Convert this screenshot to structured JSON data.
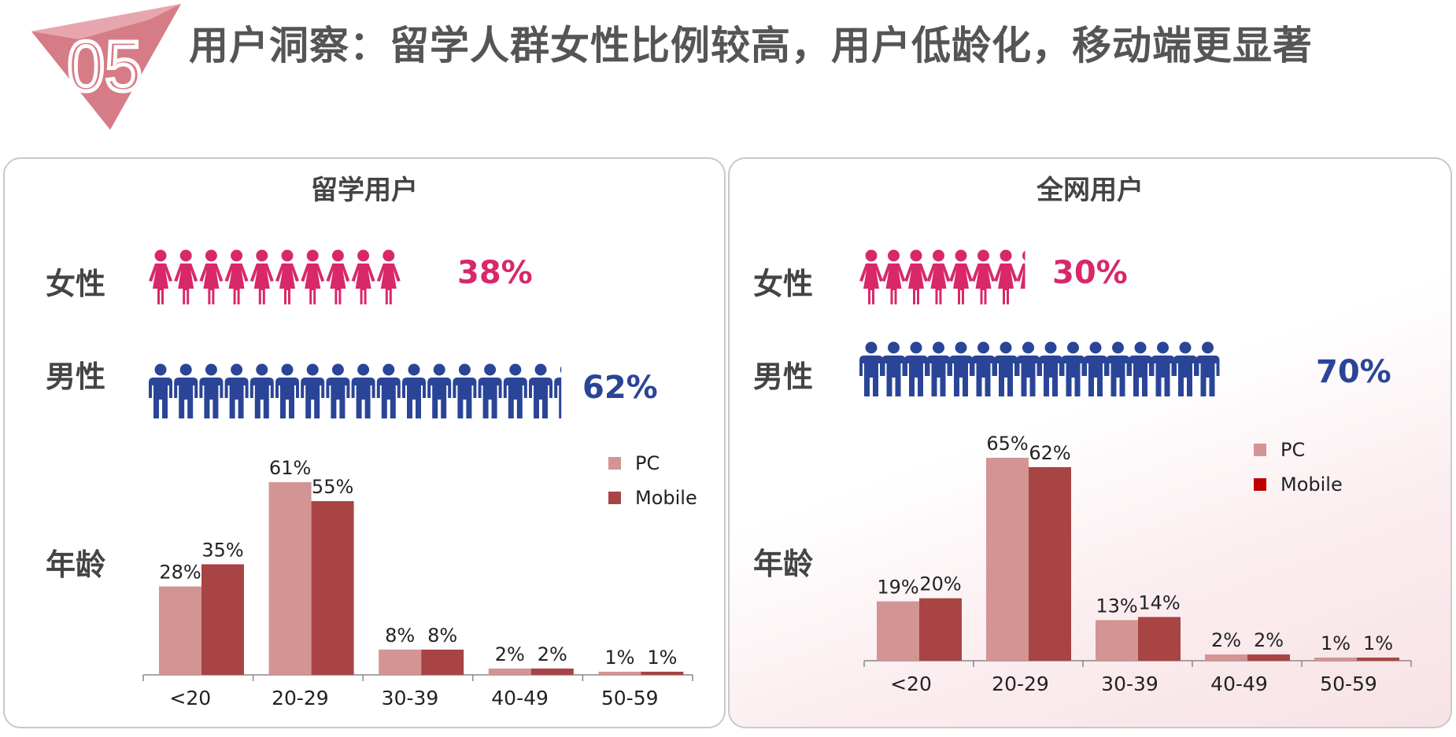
{
  "title": "用户洞察：留学人群女性比例较高，用户低龄化，移动端更显著",
  "badge": "05",
  "colors": {
    "female": "#d8286a",
    "male": "#2a4597",
    "pc": "#d39494",
    "mobile_left": "#a84444",
    "mobile_right_legend": "#c00000",
    "badge": "#d67c86"
  },
  "panels": [
    {
      "title": "留学用户",
      "female_label": "女性",
      "female_pct": "38%",
      "male_label": "男性",
      "male_pct": "62%",
      "age_label": "年龄",
      "female_icon": "female-person-icon",
      "male_icon": "male-person-icon"
    },
    {
      "title": "全网用户",
      "female_label": "女性",
      "female_pct": "30%",
      "male_label": "男性",
      "male_pct": "70%",
      "age_label": "年龄",
      "female_icon": "female-person-icon",
      "male_icon": "male-person-icon"
    }
  ],
  "chart_data": [
    {
      "type": "bar",
      "categories": [
        "<20",
        "20-29",
        "30-39",
        "40-49",
        "50-59"
      ],
      "series": [
        {
          "name": "PC",
          "values": [
            28,
            61,
            8,
            2,
            1
          ],
          "labels": [
            "28%",
            "61%",
            "8%",
            "2%",
            "1%"
          ]
        },
        {
          "name": "Mobile",
          "values": [
            35,
            55,
            8,
            2,
            1
          ],
          "labels": [
            "35%",
            "55%",
            "8%",
            "2%",
            "1%"
          ]
        }
      ],
      "ylim": [
        0,
        61
      ],
      "legend": "top-right"
    },
    {
      "type": "bar",
      "categories": [
        "<20",
        "20-29",
        "30-39",
        "40-49",
        "50-59"
      ],
      "series": [
        {
          "name": "PC",
          "values": [
            19,
            65,
            13,
            2,
            1
          ],
          "labels": [
            "19%",
            "65%",
            "13%",
            "2%",
            "1%"
          ]
        },
        {
          "name": "Mobile",
          "values": [
            20,
            62,
            14,
            2,
            1
          ],
          "labels": [
            "20%",
            "62%",
            "14%",
            "2%",
            "1%"
          ]
        }
      ],
      "ylim": [
        0,
        65
      ],
      "legend": "top-right"
    }
  ]
}
